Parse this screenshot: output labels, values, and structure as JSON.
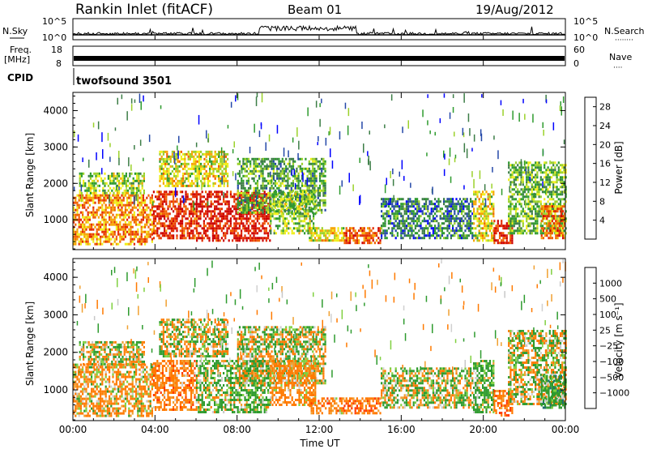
{
  "header": {
    "station": "Rankin Inlet (fitACF)",
    "beam": "Beam 01",
    "date": "19/Aug/2012"
  },
  "noise_panel": {
    "left_label": "N.Sky",
    "right_label": "N.Search",
    "left_ticks": [
      "10^5",
      "10^0"
    ],
    "right_ticks": [
      "10^5",
      "10^0"
    ],
    "dots": "········"
  },
  "freq_panel": {
    "left_label_1": "Freq.",
    "left_label_2": "[MHz]",
    "right_label": "Nave",
    "left_ticks": [
      "18",
      "8"
    ],
    "right_ticks": [
      "60",
      "0"
    ],
    "dots": "····"
  },
  "cpid": {
    "label": "CPID",
    "value": "twofsound 3501"
  },
  "colors": {
    "power_scale": [
      "#0000ff",
      "#2448a8",
      "#3c7d46",
      "#2e9b2e",
      "#9bd12a",
      "#f0ee1a",
      "#f5a500",
      "#f06000",
      "#e42c00",
      "#cc0000"
    ],
    "velocity_scale": [
      "#ff0000",
      "#ff3a00",
      "#ff7a00",
      "#f0a030",
      "#d0d0d0",
      "#c8c8c8",
      "#80d040",
      "#2e9b2e",
      "#1f6e6e",
      "#2838b8"
    ]
  },
  "chart_data": [
    {
      "type": "heatmap",
      "panel": "power",
      "xlabel": "",
      "ylabel": "Slant Range [km]",
      "x_ticks": [
        "00:00",
        "04:00",
        "08:00",
        "12:00",
        "16:00",
        "20:00",
        "00:00"
      ],
      "x_range_hours": [
        0,
        24
      ],
      "y_range_km": [
        180,
        4500
      ],
      "y_ticks": [
        1000,
        2000,
        3000,
        4000
      ],
      "colorbar": {
        "label": "Power [dB]",
        "ticks": [
          4,
          8,
          12,
          16,
          20,
          24,
          28
        ],
        "range": [
          0,
          30
        ]
      },
      "echo_regions": [
        {
          "t0": 0.0,
          "t1": 3.9,
          "r0": 300,
          "r1": 1700,
          "level": 0.7
        },
        {
          "t0": 0.3,
          "t1": 3.5,
          "r0": 1700,
          "r1": 2300,
          "level": 0.45
        },
        {
          "t0": 3.9,
          "t1": 6.0,
          "r0": 500,
          "r1": 1800,
          "level": 0.85
        },
        {
          "t0": 4.2,
          "t1": 7.5,
          "r0": 1900,
          "r1": 2900,
          "level": 0.55
        },
        {
          "t0": 6.0,
          "t1": 9.6,
          "r0": 400,
          "r1": 1800,
          "level": 0.92
        },
        {
          "t0": 8.0,
          "t1": 12.3,
          "r0": 1200,
          "r1": 2700,
          "level": 0.35
        },
        {
          "t0": 9.6,
          "t1": 11.8,
          "r0": 600,
          "r1": 1800,
          "level": 0.45
        },
        {
          "t0": 11.5,
          "t1": 13.2,
          "r0": 400,
          "r1": 800,
          "level": 0.55
        },
        {
          "t0": 13.2,
          "t1": 15.0,
          "r0": 350,
          "r1": 800,
          "level": 0.78
        },
        {
          "t0": 15.0,
          "t1": 19.5,
          "r0": 500,
          "r1": 1600,
          "level": 0.25
        },
        {
          "t0": 19.5,
          "t1": 20.5,
          "r0": 400,
          "r1": 1800,
          "level": 0.55
        },
        {
          "t0": 20.5,
          "t1": 21.4,
          "r0": 350,
          "r1": 1000,
          "level": 0.9
        },
        {
          "t0": 21.2,
          "t1": 24.0,
          "r0": 600,
          "r1": 2600,
          "level": 0.4
        },
        {
          "t0": 22.8,
          "t1": 24.0,
          "r0": 500,
          "r1": 1400,
          "level": 0.75
        }
      ]
    },
    {
      "type": "heatmap",
      "panel": "velocity",
      "xlabel": "Time UT",
      "ylabel": "Slant Range [km]",
      "x_ticks": [
        "00:00",
        "04:00",
        "08:00",
        "12:00",
        "16:00",
        "20:00",
        "00:00"
      ],
      "x_range_hours": [
        0,
        24
      ],
      "y_range_km": [
        180,
        4500
      ],
      "y_ticks": [
        1000,
        2000,
        3000,
        4000
      ],
      "colorbar": {
        "label": "Velocity [m s⁻¹]",
        "ticks": [
          "1000",
          "500",
          "100",
          "25",
          "−25",
          "−100",
          "−500",
          "−1000"
        ]
      },
      "echo_regions": [
        {
          "t0": 0.0,
          "t1": 3.9,
          "r0": 300,
          "r1": 1700,
          "vel": -150
        },
        {
          "t0": 0.3,
          "t1": 3.5,
          "r0": 1700,
          "r1": 2300,
          "vel": 10
        },
        {
          "t0": 3.9,
          "t1": 6.0,
          "r0": 500,
          "r1": 1800,
          "vel": -300
        },
        {
          "t0": 4.2,
          "t1": 7.5,
          "r0": 1900,
          "r1": 2900,
          "vel": 0
        },
        {
          "t0": 6.0,
          "t1": 9.6,
          "r0": 400,
          "r1": 1800,
          "vel": 150
        },
        {
          "t0": 8.0,
          "t1": 12.3,
          "r0": 1200,
          "r1": 2700,
          "vel": 0
        },
        {
          "t0": 9.6,
          "t1": 11.8,
          "r0": 600,
          "r1": 1800,
          "vel": -200
        },
        {
          "t0": 11.5,
          "t1": 13.2,
          "r0": 400,
          "r1": 800,
          "vel": -250
        },
        {
          "t0": 13.2,
          "t1": 15.0,
          "r0": 350,
          "r1": 800,
          "vel": -350
        },
        {
          "t0": 15.0,
          "t1": 19.5,
          "r0": 500,
          "r1": 1600,
          "vel": 30
        },
        {
          "t0": 19.5,
          "t1": 20.5,
          "r0": 400,
          "r1": 1800,
          "vel": 200
        },
        {
          "t0": 20.5,
          "t1": 21.4,
          "r0": 350,
          "r1": 1000,
          "vel": -350
        },
        {
          "t0": 21.2,
          "t1": 24.0,
          "r0": 600,
          "r1": 2600,
          "vel": 5
        },
        {
          "t0": 22.8,
          "t1": 24.0,
          "r0": 500,
          "r1": 1400,
          "vel": 300
        }
      ]
    }
  ]
}
